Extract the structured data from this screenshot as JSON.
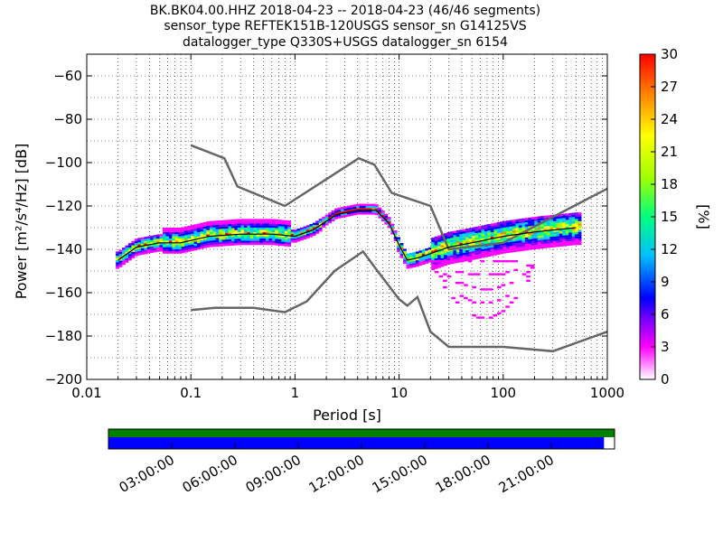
{
  "title": {
    "line1": "BK.BK04.00.HHZ   2018-04-23 -- 2018-04-23  (46/46 segments)",
    "line2": "sensor_type REFTEK151B-120USGS sensor_sn G14125VS",
    "line3": "datalogger_type Q330S+USGS datalogger_sn 6154"
  },
  "colors": {
    "noise_models": "#666666",
    "mode_line": "#000000",
    "coverage_top": "#008000",
    "coverage_bottom": "#0000ff",
    "colormap": [
      "#ffffff",
      "#ff00ff",
      "#8000ff",
      "#0000ff",
      "#00c0ff",
      "#00ff80",
      "#a0ff00",
      "#ffff00",
      "#ff8000",
      "#ff0000"
    ]
  },
  "chart_data": [
    {
      "type": "heatmap",
      "xlabel": "Period [s]",
      "ylabel": "Power [m²/s⁴/Hz] [dB]",
      "x_scale": "log",
      "xlim": [
        0.01,
        1000
      ],
      "ylim": [
        -200,
        -50
      ],
      "x_ticks": [
        0.01,
        0.1,
        1,
        10,
        100,
        1000
      ],
      "x_tick_labels": [
        "0.01",
        "0.1",
        "1",
        "10",
        "100",
        "1000"
      ],
      "y_ticks": [
        -200,
        -180,
        -160,
        -140,
        -120,
        -100,
        -80,
        -60
      ],
      "y_tick_labels": [
        "−200",
        "−180",
        "−160",
        "−140",
        "−120",
        "−100",
        "−80",
        "−60"
      ],
      "grid": true,
      "colorbar": {
        "label": "[%]",
        "range": [
          0,
          30
        ],
        "ticks": [
          0,
          3,
          6,
          9,
          12,
          15,
          18,
          21,
          24,
          27,
          30
        ],
        "tick_labels": [
          "0",
          "3",
          "6",
          "9",
          "12",
          "15",
          "18",
          "21",
          "24",
          "27",
          "30"
        ]
      },
      "series": [
        {
          "x": [
            0.1,
            0.21,
            0.28,
            0.8,
            4.1,
            5.8,
            8.5,
            20,
            30,
            100,
            1000
          ],
          "y": [
            -92,
            -98,
            -111,
            -120,
            -98,
            -101,
            -114,
            -120,
            -140,
            -137,
            -112
          ]
        },
        {
          "x": [
            0.1,
            0.17,
            0.4,
            0.8,
            1.3,
            2.4,
            4.5,
            6.2,
            10,
            12,
            15,
            20,
            30,
            100,
            300,
            1000
          ],
          "y": [
            -168,
            -167,
            -167,
            -169,
            -164,
            -150,
            -141,
            -150,
            -163,
            -166,
            -162,
            -178,
            -185,
            -185,
            -187,
            -178
          ]
        },
        {
          "x": [
            0.02,
            0.03,
            0.05,
            0.08,
            0.15,
            0.3,
            0.6,
            1.0,
            1.5,
            2.5,
            4.0,
            6.0,
            8.0,
            10,
            12,
            15,
            20,
            30,
            50,
            100,
            200,
            500
          ],
          "y": [
            -145,
            -139,
            -137,
            -137,
            -134,
            -133,
            -133,
            -134,
            -131,
            -124,
            -122,
            -122,
            -128,
            -138,
            -145,
            -144,
            -142,
            -139,
            -137,
            -134,
            -132,
            -130
          ]
        }
      ]
    },
    {
      "type": "bar",
      "x_tick_labels": [
        "03:00:00",
        "06:00:00",
        "09:00:00",
        "12:00:00",
        "15:00:00",
        "18:00:00",
        "21:00:00"
      ],
      "series": [
        {
          "x": [
            0,
            24
          ],
          "y": [
            1,
            1
          ]
        },
        {
          "x": [
            0,
            23.5
          ],
          "y": [
            1,
            1
          ]
        }
      ]
    }
  ]
}
